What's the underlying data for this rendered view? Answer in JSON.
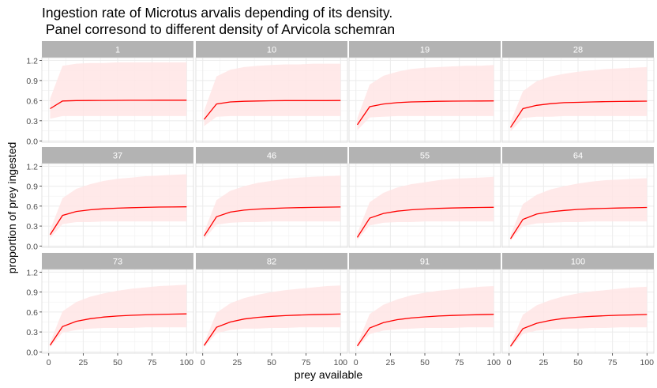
{
  "chart_data": {
    "type": "line",
    "title": "Ingestion rate of Microtus arvalis depending of its density.\n Panel corresond to different density of Arvicola schemran",
    "xlabel": "prey available",
    "ylabel": "proportion of prey ingested",
    "xlim": [
      -5,
      105
    ],
    "ylim": [
      -0.02,
      1.24
    ],
    "x_ticks": [
      0,
      25,
      50,
      75,
      100
    ],
    "y_ticks": [
      0.0,
      0.3,
      0.6,
      0.9,
      1.2
    ],
    "y_tick_labels": [
      "0.0",
      "0.3",
      "0.6",
      "0.9",
      "1.2"
    ],
    "grid": true,
    "line_color": "#ff0000",
    "ribbon_color": "#ffe5e5",
    "strip_color": "#b3b3b3",
    "x": [
      1,
      10,
      20,
      30,
      40,
      50,
      60,
      70,
      80,
      90,
      100
    ],
    "panels": [
      {
        "label": "1",
        "mean": [
          0.48,
          0.595,
          0.6,
          0.602,
          0.603,
          0.604,
          0.605,
          0.605,
          0.606,
          0.606,
          0.606
        ],
        "lower": [
          0.33,
          0.37,
          0.37,
          0.37,
          0.37,
          0.37,
          0.37,
          0.37,
          0.37,
          0.37,
          0.37
        ],
        "upper": [
          0.63,
          1.12,
          1.15,
          1.16,
          1.16,
          1.17,
          1.17,
          1.17,
          1.17,
          1.17,
          1.17
        ]
      },
      {
        "label": "10",
        "mean": [
          0.32,
          0.55,
          0.58,
          0.59,
          0.595,
          0.598,
          0.6,
          0.6,
          0.601,
          0.601,
          0.602
        ],
        "lower": [
          0.22,
          0.36,
          0.37,
          0.37,
          0.37,
          0.37,
          0.37,
          0.37,
          0.37,
          0.37,
          0.37
        ],
        "upper": [
          0.45,
          0.96,
          1.06,
          1.1,
          1.12,
          1.13,
          1.14,
          1.14,
          1.15,
          1.15,
          1.15
        ]
      },
      {
        "label": "19",
        "mean": [
          0.24,
          0.51,
          0.55,
          0.57,
          0.58,
          0.585,
          0.59,
          0.592,
          0.594,
          0.595,
          0.596
        ],
        "lower": [
          0.16,
          0.35,
          0.36,
          0.37,
          0.37,
          0.37,
          0.37,
          0.37,
          0.37,
          0.37,
          0.37
        ],
        "upper": [
          0.34,
          0.84,
          0.97,
          1.03,
          1.07,
          1.09,
          1.1,
          1.11,
          1.12,
          1.12,
          1.13
        ]
      },
      {
        "label": "28",
        "mean": [
          0.2,
          0.48,
          0.53,
          0.555,
          0.57,
          0.575,
          0.58,
          0.585,
          0.588,
          0.59,
          0.592
        ],
        "lower": [
          0.14,
          0.34,
          0.36,
          0.36,
          0.37,
          0.37,
          0.37,
          0.37,
          0.37,
          0.37,
          0.37
        ],
        "upper": [
          0.28,
          0.74,
          0.89,
          0.96,
          1.0,
          1.03,
          1.05,
          1.07,
          1.08,
          1.09,
          1.1
        ]
      },
      {
        "label": "37",
        "mean": [
          0.17,
          0.46,
          0.52,
          0.545,
          0.56,
          0.57,
          0.577,
          0.582,
          0.586,
          0.588,
          0.59
        ],
        "lower": [
          0.12,
          0.33,
          0.36,
          0.36,
          0.37,
          0.37,
          0.37,
          0.37,
          0.37,
          0.37,
          0.37
        ],
        "upper": [
          0.24,
          0.72,
          0.86,
          0.93,
          0.98,
          1.01,
          1.03,
          1.05,
          1.06,
          1.07,
          1.08
        ]
      },
      {
        "label": "46",
        "mean": [
          0.15,
          0.44,
          0.51,
          0.54,
          0.555,
          0.565,
          0.573,
          0.578,
          0.582,
          0.585,
          0.587
        ],
        "lower": [
          0.1,
          0.32,
          0.35,
          0.36,
          0.36,
          0.37,
          0.37,
          0.37,
          0.37,
          0.37,
          0.37
        ],
        "upper": [
          0.21,
          0.69,
          0.83,
          0.9,
          0.95,
          0.98,
          1.01,
          1.03,
          1.04,
          1.05,
          1.06
        ]
      },
      {
        "label": "55",
        "mean": [
          0.13,
          0.42,
          0.49,
          0.525,
          0.545,
          0.557,
          0.566,
          0.572,
          0.577,
          0.58,
          0.583
        ],
        "lower": [
          0.09,
          0.31,
          0.35,
          0.36,
          0.36,
          0.37,
          0.37,
          0.37,
          0.37,
          0.37,
          0.37
        ],
        "upper": [
          0.19,
          0.66,
          0.8,
          0.88,
          0.93,
          0.96,
          0.99,
          1.01,
          1.02,
          1.03,
          1.04
        ]
      },
      {
        "label": "64",
        "mean": [
          0.11,
          0.4,
          0.48,
          0.515,
          0.535,
          0.55,
          0.56,
          0.567,
          0.572,
          0.576,
          0.58
        ],
        "lower": [
          0.08,
          0.3,
          0.34,
          0.35,
          0.36,
          0.36,
          0.37,
          0.37,
          0.37,
          0.37,
          0.37
        ],
        "upper": [
          0.16,
          0.63,
          0.77,
          0.85,
          0.9,
          0.94,
          0.97,
          0.99,
          1.0,
          1.01,
          1.02
        ]
      },
      {
        "label": "73",
        "mean": [
          0.1,
          0.38,
          0.46,
          0.5,
          0.525,
          0.54,
          0.55,
          0.558,
          0.564,
          0.568,
          0.572
        ],
        "lower": [
          0.07,
          0.29,
          0.33,
          0.35,
          0.36,
          0.36,
          0.36,
          0.37,
          0.37,
          0.37,
          0.37
        ],
        "upper": [
          0.14,
          0.61,
          0.75,
          0.83,
          0.88,
          0.92,
          0.95,
          0.97,
          0.99,
          1.0,
          1.01
        ]
      },
      {
        "label": "82",
        "mean": [
          0.095,
          0.37,
          0.45,
          0.495,
          0.52,
          0.535,
          0.546,
          0.554,
          0.56,
          0.565,
          0.569
        ],
        "lower": [
          0.07,
          0.28,
          0.33,
          0.35,
          0.35,
          0.36,
          0.36,
          0.37,
          0.37,
          0.37,
          0.37
        ],
        "upper": [
          0.13,
          0.59,
          0.73,
          0.81,
          0.86,
          0.9,
          0.93,
          0.95,
          0.97,
          0.99,
          1.0
        ]
      },
      {
        "label": "91",
        "mean": [
          0.09,
          0.36,
          0.44,
          0.485,
          0.51,
          0.527,
          0.54,
          0.548,
          0.555,
          0.56,
          0.565
        ],
        "lower": [
          0.06,
          0.27,
          0.32,
          0.34,
          0.35,
          0.36,
          0.36,
          0.36,
          0.37,
          0.37,
          0.37
        ],
        "upper": [
          0.12,
          0.57,
          0.71,
          0.79,
          0.85,
          0.89,
          0.92,
          0.94,
          0.96,
          0.98,
          0.99
        ]
      },
      {
        "label": "100",
        "mean": [
          0.085,
          0.35,
          0.43,
          0.475,
          0.505,
          0.522,
          0.535,
          0.545,
          0.552,
          0.557,
          0.562
        ],
        "lower": [
          0.06,
          0.27,
          0.32,
          0.34,
          0.35,
          0.35,
          0.36,
          0.36,
          0.37,
          0.37,
          0.37
        ],
        "upper": [
          0.11,
          0.56,
          0.7,
          0.78,
          0.84,
          0.88,
          0.91,
          0.93,
          0.95,
          0.97,
          0.98
        ]
      }
    ]
  }
}
